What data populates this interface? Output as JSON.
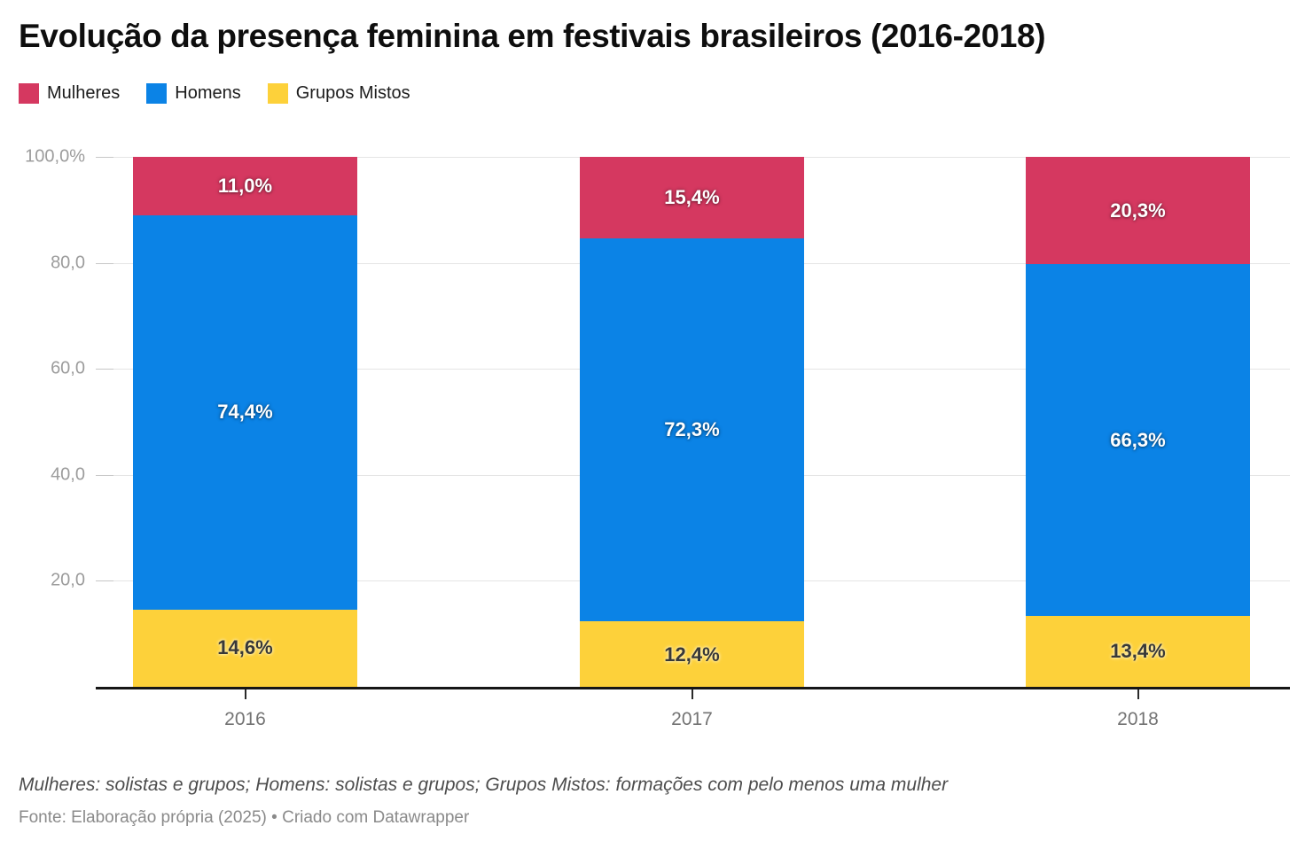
{
  "title": "Evolução da presença feminina em festivais brasileiros (2016-2018)",
  "legend": {
    "items": [
      {
        "label": "Mulheres",
        "color": "#d53860"
      },
      {
        "label": "Homens",
        "color": "#0b83e6"
      },
      {
        "label": "Grupos Mistos",
        "color": "#fdd13a"
      }
    ]
  },
  "chart_data": {
    "type": "bar",
    "stacked": true,
    "stacked_to_100": true,
    "title": "Evolução da presença feminina em festivais brasileiros (2016-2018)",
    "categories": [
      "2016",
      "2017",
      "2018"
    ],
    "series": [
      {
        "name": "Mulheres",
        "color": "#d53860",
        "position": "top",
        "values": [
          11.0,
          15.4,
          20.3
        ],
        "labels": [
          "11,0%",
          "15,4%",
          "20,3%"
        ],
        "label_style": "light"
      },
      {
        "name": "Homens",
        "color": "#0b83e6",
        "position": "middle",
        "values": [
          74.4,
          72.3,
          66.3
        ],
        "labels": [
          "74,4%",
          "72,3%",
          "66,3%"
        ],
        "label_style": "light"
      },
      {
        "name": "Grupos Mistos",
        "color": "#fdd13a",
        "position": "bottom",
        "values": [
          14.6,
          12.4,
          13.4
        ],
        "labels": [
          "14,6%",
          "12,4%",
          "13,4%"
        ],
        "label_style": "dark"
      }
    ],
    "ylim": [
      0,
      100
    ],
    "yticks": [
      {
        "value": 100,
        "label": "100,0%"
      },
      {
        "value": 80,
        "label": "80,0"
      },
      {
        "value": 60,
        "label": "60,0"
      },
      {
        "value": 40,
        "label": "40,0"
      },
      {
        "value": 20,
        "label": "20,0"
      }
    ],
    "grid": true,
    "legend_position": "top-left",
    "colors": {
      "grid": "#e4e4e4",
      "axis": "#161616",
      "ylabel_text": "#9c9c9c",
      "xlabel_text": "#737373"
    }
  },
  "footer": {
    "notes": "Mulheres: solistas e grupos; Homens: solistas e grupos; Grupos Mistos: formações com pelo menos uma mulher",
    "source": "Fonte: Elaboração própria (2025) • Criado com Datawrapper"
  }
}
